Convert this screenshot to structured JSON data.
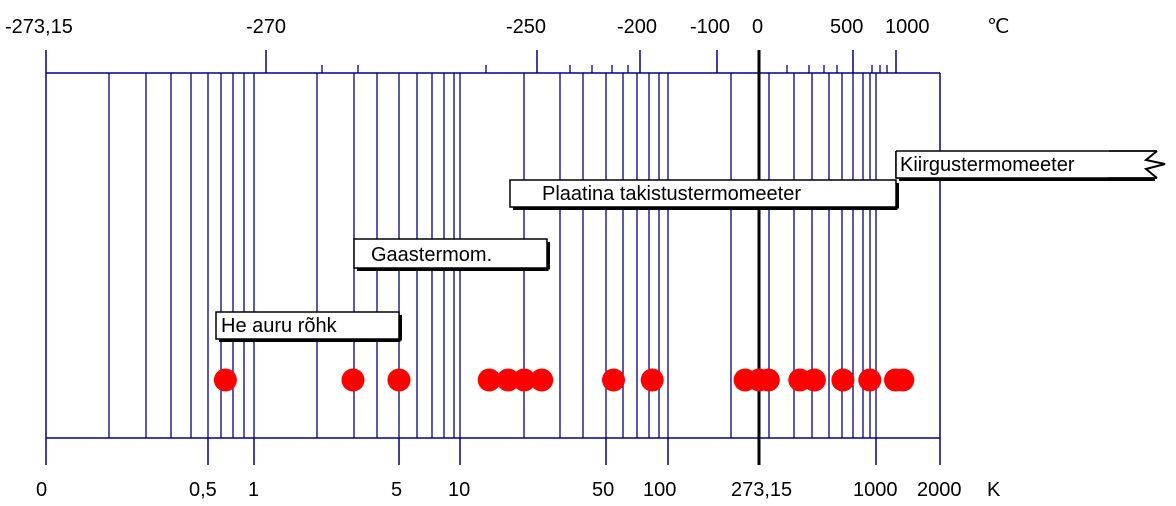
{
  "chart_data": {
    "type": "scatter",
    "celsius_axis": {
      "unit": "℃",
      "tick_labels": [
        "-273,15",
        "-270",
        "-250",
        "-200",
        "-100",
        "0",
        "500",
        "1000"
      ],
      "tick_values_kelvin": [
        0,
        3.15,
        23.15,
        73.15,
        173.15,
        273.15,
        773.15,
        1273.15
      ]
    },
    "kelvin_axis": {
      "unit": "K",
      "tick_labels": [
        "0",
        "0,5",
        "1",
        "5",
        "10",
        "50",
        "100",
        "273,15",
        "1000",
        "2000"
      ],
      "tick_values": [
        0,
        0.5,
        1,
        5,
        10,
        50,
        100,
        273.15,
        1000,
        2000
      ]
    },
    "thermometer_ranges": [
      {
        "label": "He auru rõhk",
        "from_kelvin": 0.5,
        "to_kelvin": 5
      },
      {
        "label": "Gaastermom.",
        "from_kelvin": 3,
        "to_kelvin": 24
      },
      {
        "label": "Plaatina takistustermomeeter",
        "from_kelvin": 14,
        "to_kelvin": 1235
      },
      {
        "label": "Kiirgustermomeeter",
        "from_kelvin": 1235,
        "to_kelvin": null
      }
    ],
    "fixed_points_kelvin": [
      0.65,
      3,
      5,
      13.8,
      17,
      20.3,
      24.6,
      54.4,
      83.8,
      234.3,
      273.16,
      302.9,
      429.7,
      505.1,
      692.7,
      933.5,
      1234.9,
      1337.3
    ]
  }
}
